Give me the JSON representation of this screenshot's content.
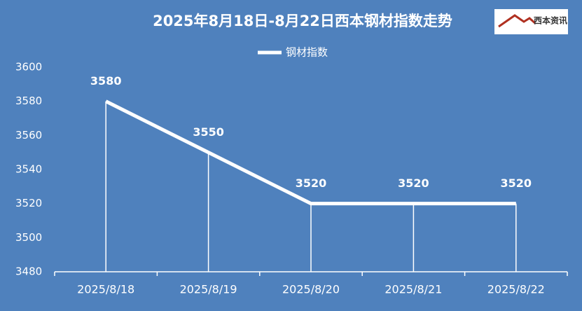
{
  "chart_data": {
    "type": "line",
    "title": "2025年8月18日-8月22日西本钢材指数走势",
    "logo": "西本资讯",
    "categories": [
      "2025/8/18",
      "2025/8/19",
      "2025/8/20",
      "2025/8/21",
      "2025/8/22"
    ],
    "series": [
      {
        "name": "钢材指数",
        "color": "#ffffff",
        "values": [
          3580,
          3550,
          3520,
          3520,
          3520
        ]
      }
    ],
    "ylim": [
      3480,
      3600
    ],
    "yticks": [
      3480,
      3500,
      3520,
      3540,
      3560,
      3580,
      3600
    ],
    "drop_lines": true,
    "legend": "top"
  }
}
